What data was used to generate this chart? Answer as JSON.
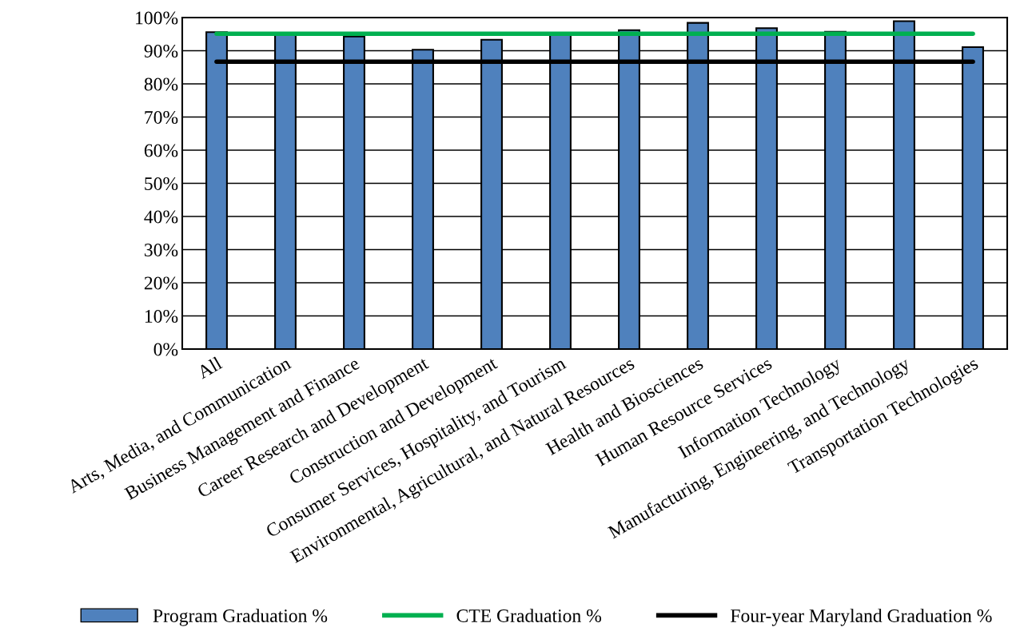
{
  "chart_data": {
    "type": "bar",
    "categories": [
      "All",
      "Arts, Media, and Communication",
      "Business Management and Finance",
      "Career Research and Development",
      "Construction and Development",
      "Consumer Services, Hospitality, and Tourism",
      "Environmental, Agricultural, and Natural Resources",
      "Health and Biosciences",
      "Human Resource Services",
      "Information Technology",
      "Manufacturing, Engineering, and Technology",
      "Transportation Technologies"
    ],
    "series": [
      {
        "name": "Program Graduation %",
        "color": "#4f81bd",
        "values": [
          95.6,
          95.2,
          94.3,
          90.3,
          93.3,
          95.2,
          96.2,
          98.4,
          96.8,
          95.7,
          98.9,
          91.1
        ]
      },
      {
        "name": "CTE Graduation %",
        "type": "line",
        "color": "#00b050",
        "values": [
          95.1,
          95.1,
          95.1,
          95.1,
          95.1,
          95.1,
          95.1,
          95.1,
          95.1,
          95.1,
          95.1,
          95.1
        ]
      },
      {
        "name": "Four-year Maryland Graduation %",
        "type": "line",
        "color": "#000000",
        "values": [
          86.7,
          86.7,
          86.7,
          86.7,
          86.7,
          86.7,
          86.7,
          86.7,
          86.7,
          86.7,
          86.7,
          86.7
        ]
      }
    ],
    "ylim": [
      0,
      100
    ],
    "yticks": [
      {
        "value": 0,
        "label": "0%"
      },
      {
        "value": 10,
        "label": "10%"
      },
      {
        "value": 20,
        "label": "20%"
      },
      {
        "value": 30,
        "label": "30%"
      },
      {
        "value": 40,
        "label": "40%"
      },
      {
        "value": 50,
        "label": "50%"
      },
      {
        "value": 60,
        "label": "60%"
      },
      {
        "value": 70,
        "label": "70%"
      },
      {
        "value": 80,
        "label": "80%"
      },
      {
        "value": 90,
        "label": "90%"
      },
      {
        "value": 100,
        "label": "100%"
      }
    ],
    "grid": "y",
    "legend": "bottom"
  }
}
